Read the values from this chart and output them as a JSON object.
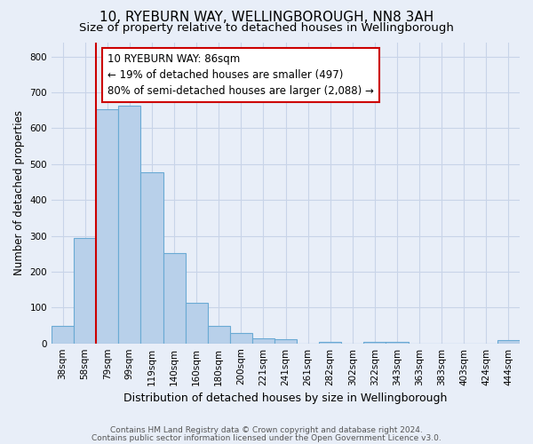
{
  "title": "10, RYEBURN WAY, WELLINGBOROUGH, NN8 3AH",
  "subtitle": "Size of property relative to detached houses in Wellingborough",
  "xlabel": "Distribution of detached houses by size in Wellingborough",
  "ylabel": "Number of detached properties",
  "footnote1": "Contains HM Land Registry data © Crown copyright and database right 2024.",
  "footnote2": "Contains public sector information licensed under the Open Government Licence v3.0.",
  "bin_labels": [
    "38sqm",
    "58sqm",
    "79sqm",
    "99sqm",
    "119sqm",
    "140sqm",
    "160sqm",
    "180sqm",
    "200sqm",
    "221sqm",
    "241sqm",
    "261sqm",
    "282sqm",
    "302sqm",
    "322sqm",
    "343sqm",
    "363sqm",
    "383sqm",
    "403sqm",
    "424sqm",
    "444sqm"
  ],
  "bar_heights": [
    48,
    293,
    652,
    663,
    478,
    253,
    114,
    48,
    28,
    15,
    12,
    0,
    5,
    0,
    5,
    5,
    0,
    0,
    0,
    0,
    8
  ],
  "bar_color": "#b8d0ea",
  "bar_edge_color": "#6aaad4",
  "vline_x_idx": 2,
  "vline_color": "#cc0000",
  "annotation_line1": "10 RYEBURN WAY: 86sqm",
  "annotation_line2": "← 19% of detached houses are smaller (497)",
  "annotation_line3": "80% of semi-detached houses are larger (2,088) →",
  "annotation_box_facecolor": "#ffffff",
  "annotation_box_edgecolor": "#cc0000",
  "ylim": [
    0,
    840
  ],
  "yticks": [
    0,
    100,
    200,
    300,
    400,
    500,
    600,
    700,
    800
  ],
  "grid_color": "#c8d4e8",
  "background_color": "#e8eef8",
  "title_fontsize": 11,
  "subtitle_fontsize": 9.5,
  "ylabel_fontsize": 8.5,
  "xlabel_fontsize": 9,
  "tick_fontsize": 7.5,
  "annotation_fontsize": 8.5,
  "footnote_fontsize": 6.5
}
